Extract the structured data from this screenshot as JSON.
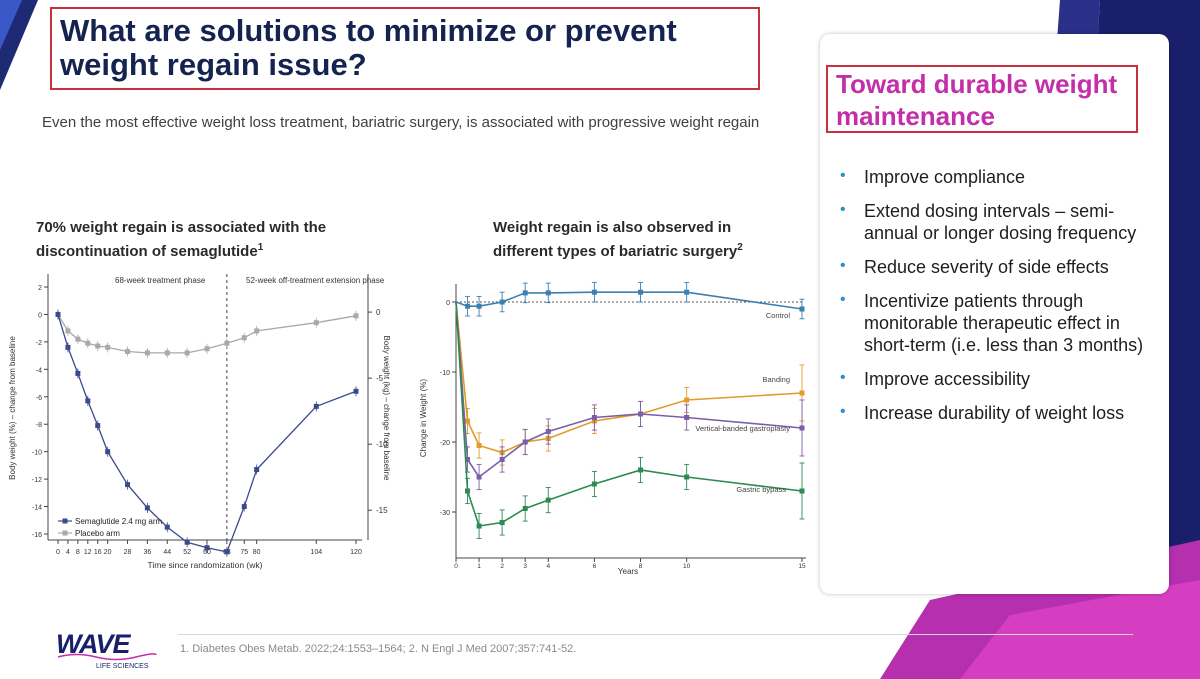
{
  "title": "What are solutions to minimize or prevent weight regain issue?",
  "subtitle": "Even the most effective weight loss treatment, bariatric surgery, is associated with progressive weight regain",
  "colors": {
    "title": "#14234f",
    "accent_red": "#c8303d",
    "magenta": "#c42ea8",
    "navy": "#1a1f6b",
    "bullet": "#2a91c9"
  },
  "left_chart_heading": {
    "text": "70% weight regain is associated with the discontinuation of semaglutide",
    "sup": "1"
  },
  "right_chart_heading": {
    "text": "Weight regain is also observed in different types of bariatric surgery",
    "sup": "2"
  },
  "panel": {
    "title": "Toward durable weight maintenance",
    "bullets": [
      "Improve compliance",
      "Extend dosing intervals – semi-annual or longer dosing frequency",
      "Reduce severity of side effects",
      "Incentivize patients through monitorable therapeutic effect in short-term (i.e. less than 3 months)",
      "Improve accessibility",
      "Increase durability of weight loss"
    ]
  },
  "logo": {
    "word": "WAVE",
    "sub": "LIFE SCIENCES"
  },
  "footnote": "1. Diabetes Obes Metab. 2022;24:1553–1564; 2. N Engl J Med 2007;357:741-52.",
  "chart_data": [
    {
      "type": "line",
      "phase_labels": [
        "68-week treatment phase",
        "52-week off-treatment extension phase"
      ],
      "xlabel": "Time since randomization (wk)",
      "ylabel": "Body weight (%) – change from baseline",
      "y2label": "Body weight (kg) – change from baseline",
      "xlim": [
        0,
        120
      ],
      "ylim": [
        -16,
        2
      ],
      "y2lim": [
        -16.8,
        1.9
      ],
      "xticks": [
        0,
        4,
        8,
        12,
        16,
        20,
        28,
        36,
        44,
        52,
        60,
        68,
        75,
        80,
        104,
        120
      ],
      "yticks": [
        2,
        0,
        -2,
        -4,
        -6,
        -8,
        -10,
        -12,
        -14,
        -16
      ],
      "y2ticks": [
        0,
        -5,
        -10,
        -15
      ],
      "series": [
        {
          "name": "Semaglutide 2.4 mg arm",
          "color": "#3b4a8c",
          "x": [
            0,
            4,
            8,
            12,
            16,
            20,
            28,
            36,
            44,
            52,
            60,
            68,
            75,
            80,
            104,
            120
          ],
          "y": [
            0,
            -2.4,
            -4.3,
            -6.3,
            -8.1,
            -10,
            -12.4,
            -14.1,
            -15.5,
            -16.6,
            -17,
            -17.3,
            -14,
            -11.3,
            -6.7,
            -5.6
          ]
        },
        {
          "name": "Placebo arm",
          "color": "#a9a9a9",
          "x": [
            0,
            4,
            8,
            12,
            16,
            20,
            28,
            36,
            44,
            52,
            60,
            68,
            75,
            80,
            104,
            120
          ],
          "y": [
            0,
            -1.2,
            -1.8,
            -2.1,
            -2.3,
            -2.4,
            -2.7,
            -2.8,
            -2.8,
            -2.8,
            -2.5,
            -2.1,
            -1.7,
            -1.2,
            -0.6,
            -0.1
          ]
        }
      ]
    },
    {
      "type": "line",
      "xlabel": "Years",
      "ylabel": "Change in Weight (%)",
      "xlim": [
        0,
        15
      ],
      "ylim": [
        -36,
        2
      ],
      "xticks": [
        0,
        1,
        2,
        3,
        4,
        6,
        8,
        10,
        15
      ],
      "yticks": [
        0,
        -10,
        -20,
        -30
      ],
      "series": [
        {
          "name": "Control",
          "color": "#3d7fb0",
          "x": [
            0,
            0.5,
            1,
            2,
            3,
            4,
            6,
            8,
            10,
            15
          ],
          "y": [
            0,
            -0.6,
            -0.6,
            0,
            1.3,
            1.3,
            1.4,
            1.4,
            1.4,
            -1
          ]
        },
        {
          "name": "Banding",
          "color": "#e49a2a",
          "x": [
            0,
            0.5,
            1,
            2,
            3,
            4,
            6,
            8,
            10,
            15
          ],
          "y": [
            0,
            -17,
            -20.5,
            -21.5,
            -20,
            -19.5,
            -17,
            -16,
            -14,
            -13
          ]
        },
        {
          "name": "Vertical-banded gastroplasty",
          "color": "#7a5ea8",
          "x": [
            0,
            0.5,
            1,
            2,
            3,
            4,
            6,
            8,
            10,
            15
          ],
          "y": [
            0,
            -22.5,
            -25,
            -22.5,
            -20,
            -18.5,
            -16.5,
            -16,
            -16.5,
            -18
          ]
        },
        {
          "name": "Gastric bypass",
          "color": "#2c8a52",
          "x": [
            0,
            0.5,
            1,
            2,
            3,
            4,
            6,
            8,
            10,
            15
          ],
          "y": [
            0,
            -27,
            -32,
            -31.5,
            -29.5,
            -28.3,
            -26,
            -24,
            -25,
            -27
          ]
        }
      ]
    }
  ]
}
